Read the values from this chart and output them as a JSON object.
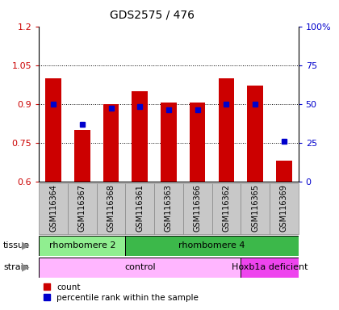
{
  "title": "GDS2575 / 476",
  "samples": [
    "GSM116364",
    "GSM116367",
    "GSM116368",
    "GSM116361",
    "GSM116363",
    "GSM116366",
    "GSM116362",
    "GSM116365",
    "GSM116369"
  ],
  "red_values": [
    1.0,
    0.8,
    0.9,
    0.95,
    0.905,
    0.905,
    1.0,
    0.97,
    0.68
  ],
  "blue_percentile": [
    50,
    37,
    47,
    48,
    46,
    46,
    50,
    50,
    26
  ],
  "ylim_left": [
    0.6,
    1.2
  ],
  "ylim_right": [
    0,
    100
  ],
  "yticks_left": [
    0.6,
    0.75,
    0.9,
    1.05,
    1.2
  ],
  "yticks_right": [
    0,
    25,
    50,
    75,
    100
  ],
  "ytick_labels_right": [
    "0",
    "25",
    "50",
    "75",
    "100%"
  ],
  "ytick_labels_left": [
    "0.6",
    "0.75",
    "0.9",
    "1.05",
    "1.2"
  ],
  "tissue_groups": [
    {
      "label": "rhombomere 2",
      "start": 0,
      "end": 3,
      "color": "#90EE90"
    },
    {
      "label": "rhombomere 4",
      "start": 3,
      "end": 9,
      "color": "#3CB84A"
    }
  ],
  "strain_groups": [
    {
      "label": "control",
      "start": 0,
      "end": 7,
      "color": "#FFB6FF"
    },
    {
      "label": "Hoxb1a deficient",
      "start": 7,
      "end": 9,
      "color": "#EE44EE"
    }
  ],
  "bar_color": "#CC0000",
  "dot_color": "#0000CC",
  "bar_bottom": 0.6,
  "bar_width": 0.55,
  "left_axis_color": "#CC0000",
  "right_axis_color": "#0000CC",
  "plot_bg": "#FFFFFF",
  "label_bg": "#C8C8C8",
  "grid_color": "#000000",
  "spine_color": "#000000"
}
